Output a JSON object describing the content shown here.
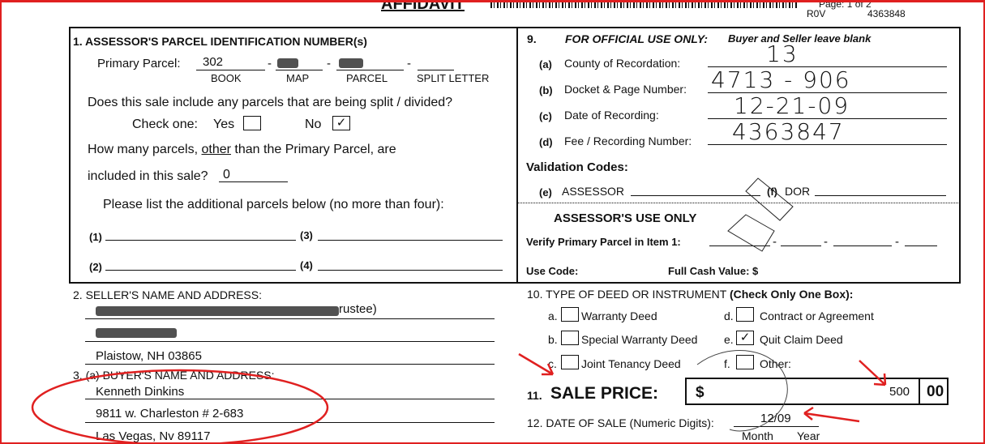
{
  "header": {
    "title": "AFFIDAVIT",
    "page": "Page: 1 of 2",
    "rov": "R0V",
    "doc_number": "4363848"
  },
  "s1": {
    "heading": "1. ASSESSOR'S PARCEL IDENTIFICATION NUMBER(s)",
    "primary_label": "Primary Parcel:",
    "book": "302",
    "book_l": "BOOK",
    "map_l": "MAP",
    "parcel_l": "PARCEL",
    "split_l": "SPLIT LETTER",
    "split_q": "Does this sale include any parcels that are being split / divided?",
    "check_one": "Check one:",
    "yes": "Yes",
    "no": "No",
    "no_mark": "✓",
    "how_many_1": "How many parcels, ",
    "other": "other",
    "how_many_2": " than the Primary Parcel, are",
    "included": "included in this sale?",
    "count": "0",
    "list": "Please list the additional parcels below (no more than four):",
    "p1": "(1)",
    "p2": "(2)",
    "p3": "(3)",
    "p4": "(4)"
  },
  "s9": {
    "num": "9.",
    "heading": "FOR OFFICIAL USE ONLY:",
    "sub": "Buyer and Seller leave blank",
    "a_l": "(a)",
    "a": "County of Recordation:",
    "a_v": "13",
    "b_l": "(b)",
    "b": "Docket & Page Number:",
    "b_v": "4713 - 906",
    "c_l": "(c)",
    "c": "Date of Recording:",
    "c_v": "12-21-09",
    "d_l": "(d)",
    "d": "Fee / Recording Number:",
    "d_v": "4363847",
    "validation": "Validation Codes:",
    "e_l": "(e)",
    "e": "ASSESSOR",
    "f_l": "(f)",
    "f": "DOR",
    "assessor_only": "ASSESSOR'S USE ONLY",
    "verify": "Verify Primary Parcel in Item 1:",
    "use_code": "Use Code:",
    "fcv": "Full Cash Value: $"
  },
  "s2": {
    "heading": "2. SELLER'S NAME AND ADDRESS:",
    "line1_tail": "rustee)",
    "city": "Plaistow, NH 03865"
  },
  "s3": {
    "heading": "3. (a) BUYER'S NAME AND ADDRESS:",
    "name": "Kenneth Dinkins",
    "street": "9811 w. Charleston # 2-683",
    "city": "Las Vegas, Nv 89117"
  },
  "s10": {
    "heading": "10. TYPE OF DEED OR INSTRUMENT",
    "heading_b": "(Check Only One Box):",
    "a": "a.",
    "a_t": "Warranty Deed",
    "b": "b.",
    "b_t": "Special Warranty Deed",
    "c": "c.",
    "c_t": "Joint Tenancy Deed",
    "d": "d.",
    "d_t": "Contract or Agreement",
    "e": "e.",
    "e_t": "Quit Claim Deed",
    "e_mark": "✓",
    "f": "f.",
    "f_t": "Other:"
  },
  "s11": {
    "num": "11.",
    "label": "SALE PRICE:",
    "currency": "$",
    "dollars": "500",
    "cents": "00"
  },
  "s12": {
    "label": "12. DATE OF SALE (Numeric Digits):",
    "value": "12/09",
    "month": "Month",
    "year": "Year"
  },
  "colors": {
    "annotation": "#e02020"
  }
}
